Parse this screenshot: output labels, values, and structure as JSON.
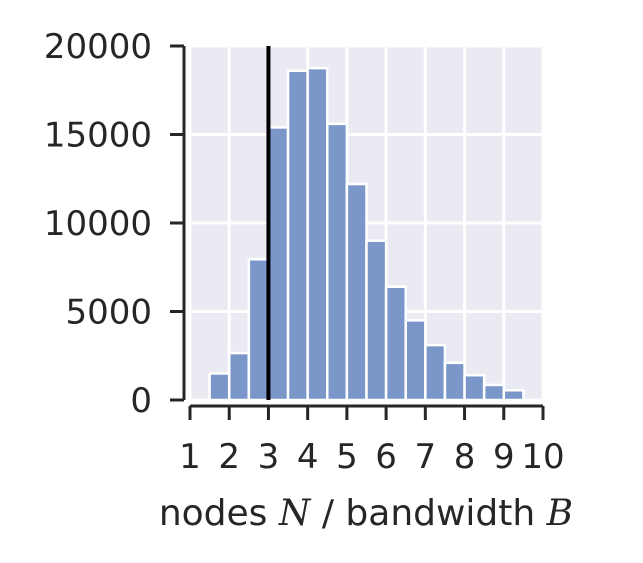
{
  "chart_data": {
    "type": "bar",
    "title": "",
    "xlabel": {
      "prefix": "nodes ",
      "var1": "N",
      "middle": " / bandwidth ",
      "var2": "B"
    },
    "ylabel": "",
    "xlim": [
      1,
      10
    ],
    "ylim": [
      0,
      20000
    ],
    "grid": true,
    "x_ticks": [
      "1",
      "2",
      "3",
      "4",
      "5",
      "6",
      "7",
      "8",
      "9",
      "10"
    ],
    "x_tick_values": [
      1,
      2,
      3,
      4,
      5,
      6,
      7,
      8,
      9,
      10
    ],
    "y_ticks": [
      "0",
      "5000",
      "10000",
      "15000",
      "20000"
    ],
    "y_tick_values": [
      0,
      5000,
      10000,
      15000,
      20000
    ],
    "bin_width": 0.5,
    "bins": [
      {
        "x0": 1.5,
        "value": 1500
      },
      {
        "x0": 2.0,
        "value": 2650
      },
      {
        "x0": 2.5,
        "value": 7950
      },
      {
        "x0": 3.0,
        "value": 15400
      },
      {
        "x0": 3.5,
        "value": 18600
      },
      {
        "x0": 4.0,
        "value": 18750
      },
      {
        "x0": 4.5,
        "value": 15600
      },
      {
        "x0": 5.0,
        "value": 12200
      },
      {
        "x0": 5.5,
        "value": 9000
      },
      {
        "x0": 6.0,
        "value": 6400
      },
      {
        "x0": 6.5,
        "value": 4500
      },
      {
        "x0": 7.0,
        "value": 3100
      },
      {
        "x0": 7.5,
        "value": 2100
      },
      {
        "x0": 8.0,
        "value": 1400
      },
      {
        "x0": 8.5,
        "value": 850
      },
      {
        "x0": 9.0,
        "value": 550
      }
    ],
    "vline_x": 3,
    "bar_color": "#7b97c9",
    "background_color": "#eaeaf2",
    "grid_color": "#ffffff",
    "vline_color": "#000000"
  }
}
